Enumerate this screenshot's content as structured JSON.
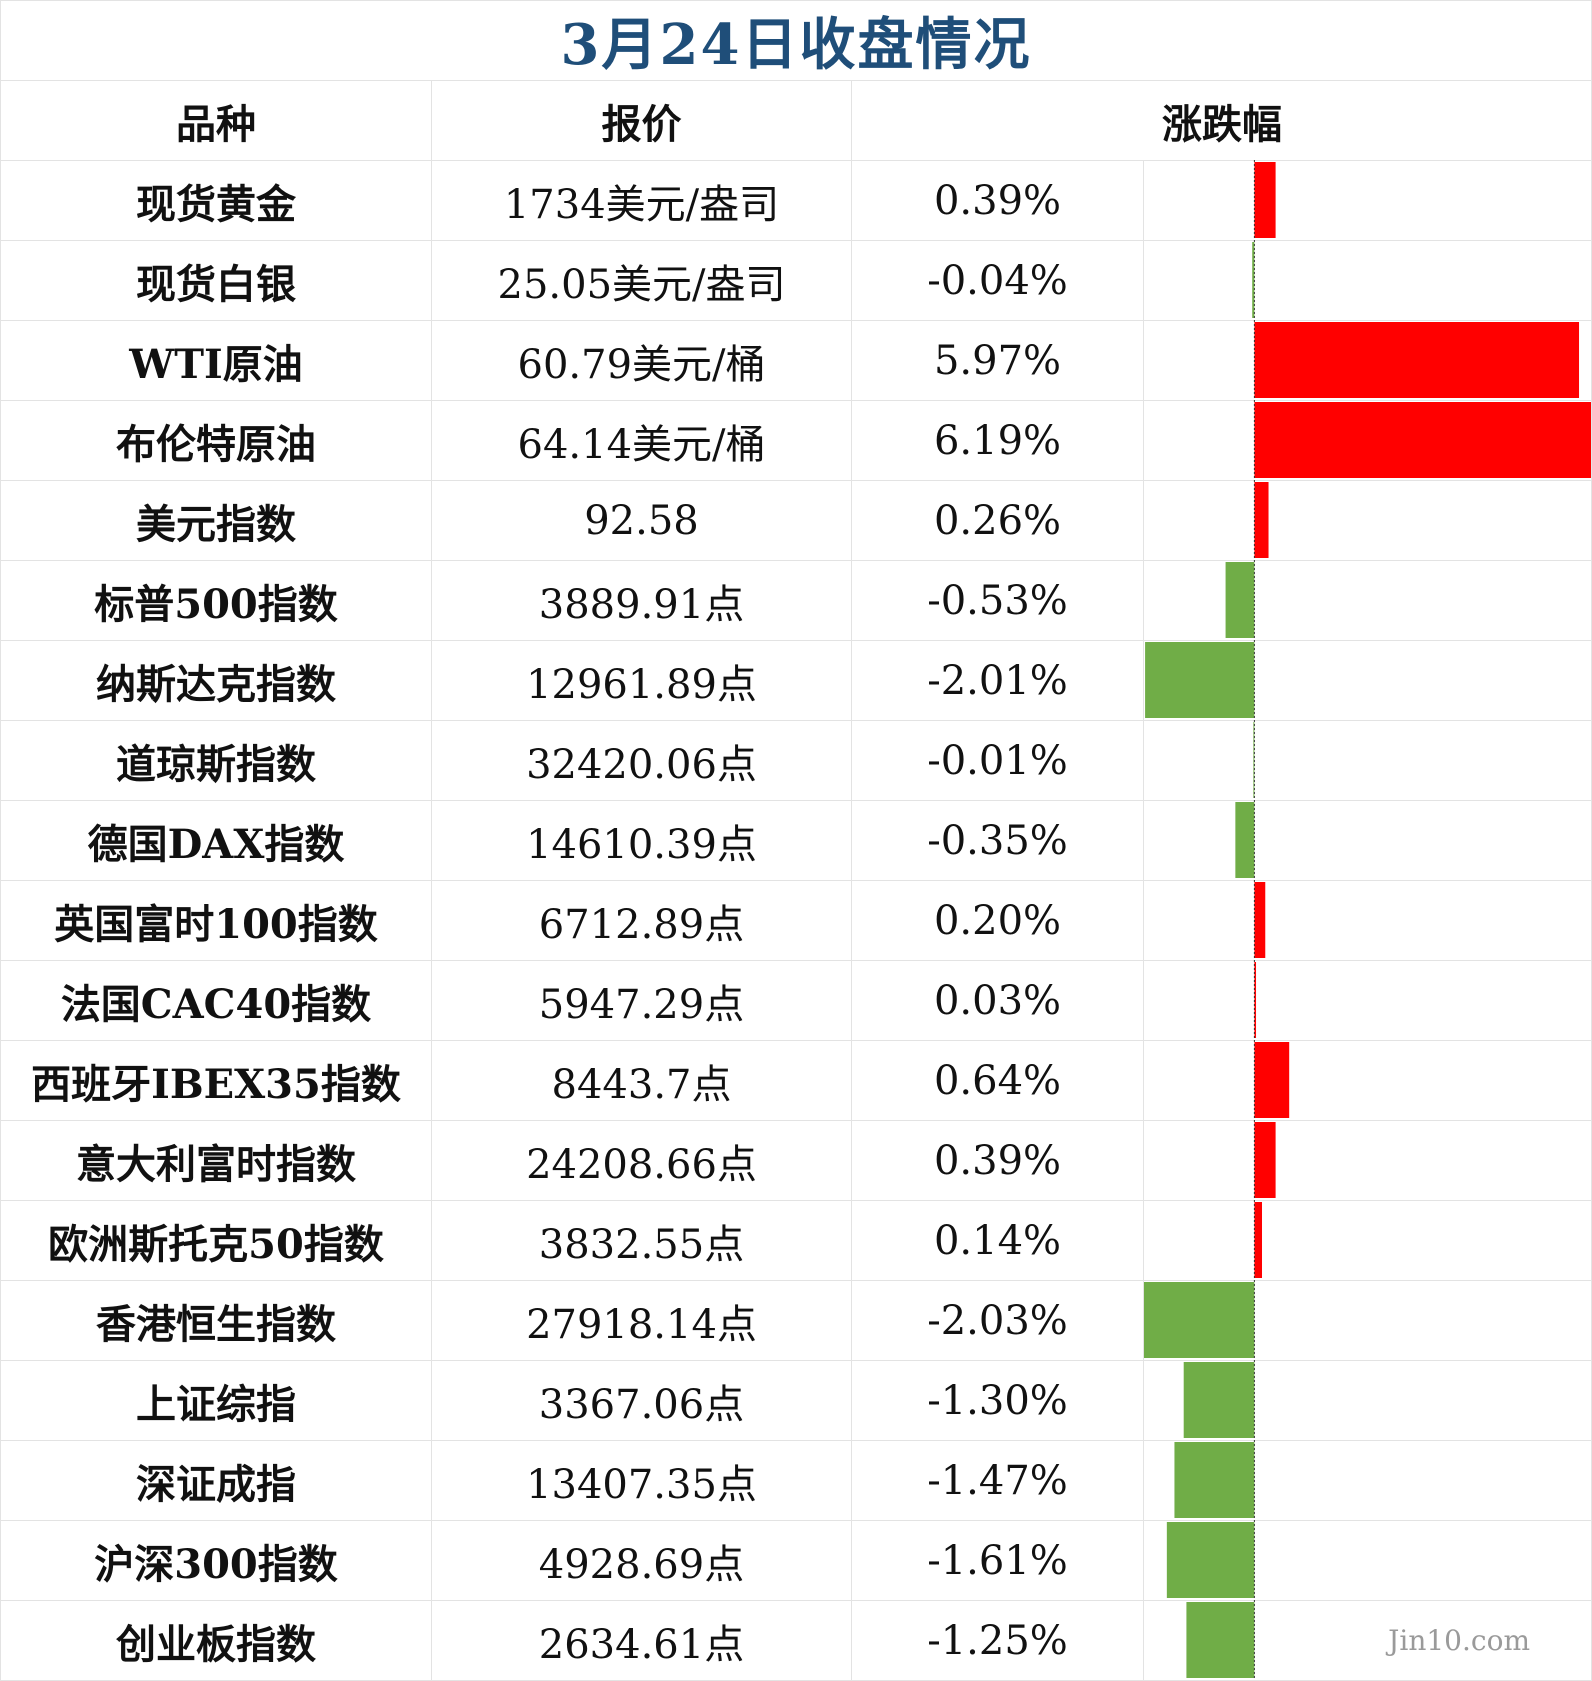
{
  "title": "3月24日收盘情况",
  "headers": {
    "name": "品种",
    "price": "报价",
    "change": "涨跌幅"
  },
  "colors": {
    "up": "#FF0000",
    "down": "#70AD47",
    "title": "#1F4E79"
  },
  "watermark": "Jin10.com",
  "rows": [
    {
      "name": "现货黄金",
      "price": "1734美元/盎司",
      "change": "0.39%"
    },
    {
      "name": "现货白银",
      "price": "25.05美元/盎司",
      "change": "-0.04%"
    },
    {
      "name": "WTI原油",
      "price": "60.79美元/桶",
      "change": "5.97%"
    },
    {
      "name": "布伦特原油",
      "price": "64.14美元/桶",
      "change": "6.19%"
    },
    {
      "name": "美元指数",
      "price": "92.58",
      "change": "0.26%"
    },
    {
      "name": "标普500指数",
      "price": "3889.91点",
      "change": "-0.53%"
    },
    {
      "name": "纳斯达克指数",
      "price": "12961.89点",
      "change": "-2.01%"
    },
    {
      "name": "道琼斯指数",
      "price": "32420.06点",
      "change": "-0.01%"
    },
    {
      "name": "德国DAX指数",
      "price": "14610.39点",
      "change": "-0.35%"
    },
    {
      "name": "英国富时100指数",
      "price": "6712.89点",
      "change": "0.20%"
    },
    {
      "name": "法国CAC40指数",
      "price": "5947.29点",
      "change": "0.03%"
    },
    {
      "name": "西班牙IBEX35指数",
      "price": "8443.7点",
      "change": "0.64%"
    },
    {
      "name": "意大利富时指数",
      "price": "24208.66点",
      "change": "0.39%"
    },
    {
      "name": "欧洲斯托克50指数",
      "price": "3832.55点",
      "change": "0.14%"
    },
    {
      "name": "香港恒生指数",
      "price": "27918.14点",
      "change": "-2.03%"
    },
    {
      "name": "上证综指",
      "price": "3367.06点",
      "change": "-1.30%"
    },
    {
      "name": "深证成指",
      "price": "13407.35点",
      "change": "-1.47%"
    },
    {
      "name": "沪深300指数",
      "price": "4928.69点",
      "change": "-1.61%"
    },
    {
      "name": "创业板指数",
      "price": "2634.61点",
      "change": "-1.25%"
    }
  ],
  "chart_data": {
    "type": "bar",
    "orientation": "horizontal",
    "categories": [
      "现货黄金",
      "现货白银",
      "WTI原油",
      "布伦特原油",
      "美元指数",
      "标普500指数",
      "纳斯达克指数",
      "道琼斯指数",
      "德国DAX指数",
      "英国富时100指数",
      "法国CAC40指数",
      "西班牙IBEX35指数",
      "意大利富时指数",
      "欧洲斯托克50指数",
      "香港恒生指数",
      "上证综指",
      "深证成指",
      "沪深300指数",
      "创业板指数"
    ],
    "values": [
      0.39,
      -0.04,
      5.97,
      6.19,
      0.26,
      -0.53,
      -2.01,
      -0.01,
      -0.35,
      0.2,
      0.03,
      0.64,
      0.39,
      0.14,
      -2.03,
      -1.3,
      -1.47,
      -1.61,
      -1.25
    ],
    "unit": "%",
    "xlim": [
      -2.03,
      6.19
    ]
  }
}
